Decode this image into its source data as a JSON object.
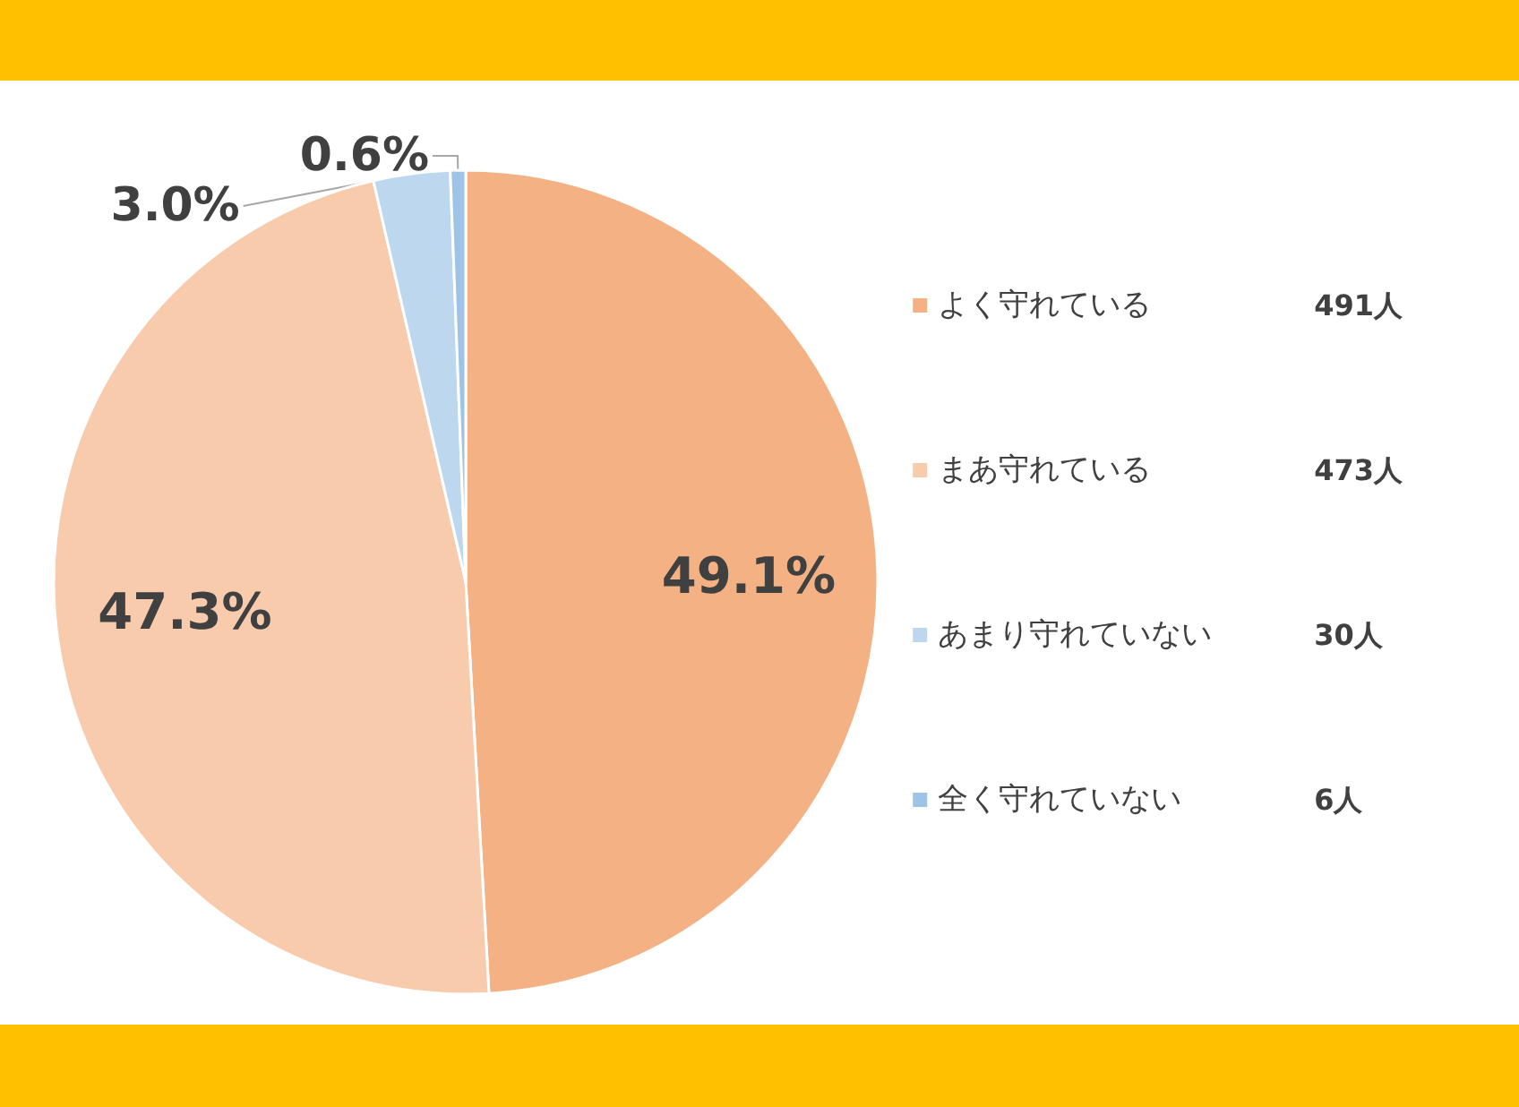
{
  "chart_data": {
    "type": "pie",
    "categories": [
      "よく守れている",
      "まあ守れている",
      "あまり守れていない",
      "全く守れていない"
    ],
    "values": [
      49.1,
      47.3,
      3.0,
      0.6
    ],
    "colors": [
      "#f4b183",
      "#f8cbad",
      "#bdd7ee",
      "#9dc3e6"
    ],
    "value_labels": [
      "49.1%",
      "47.3%",
      "3.0%",
      "0.6%"
    ],
    "annotations": [
      "491人",
      "473人",
      "30人",
      "6人"
    ],
    "legend": "right"
  }
}
